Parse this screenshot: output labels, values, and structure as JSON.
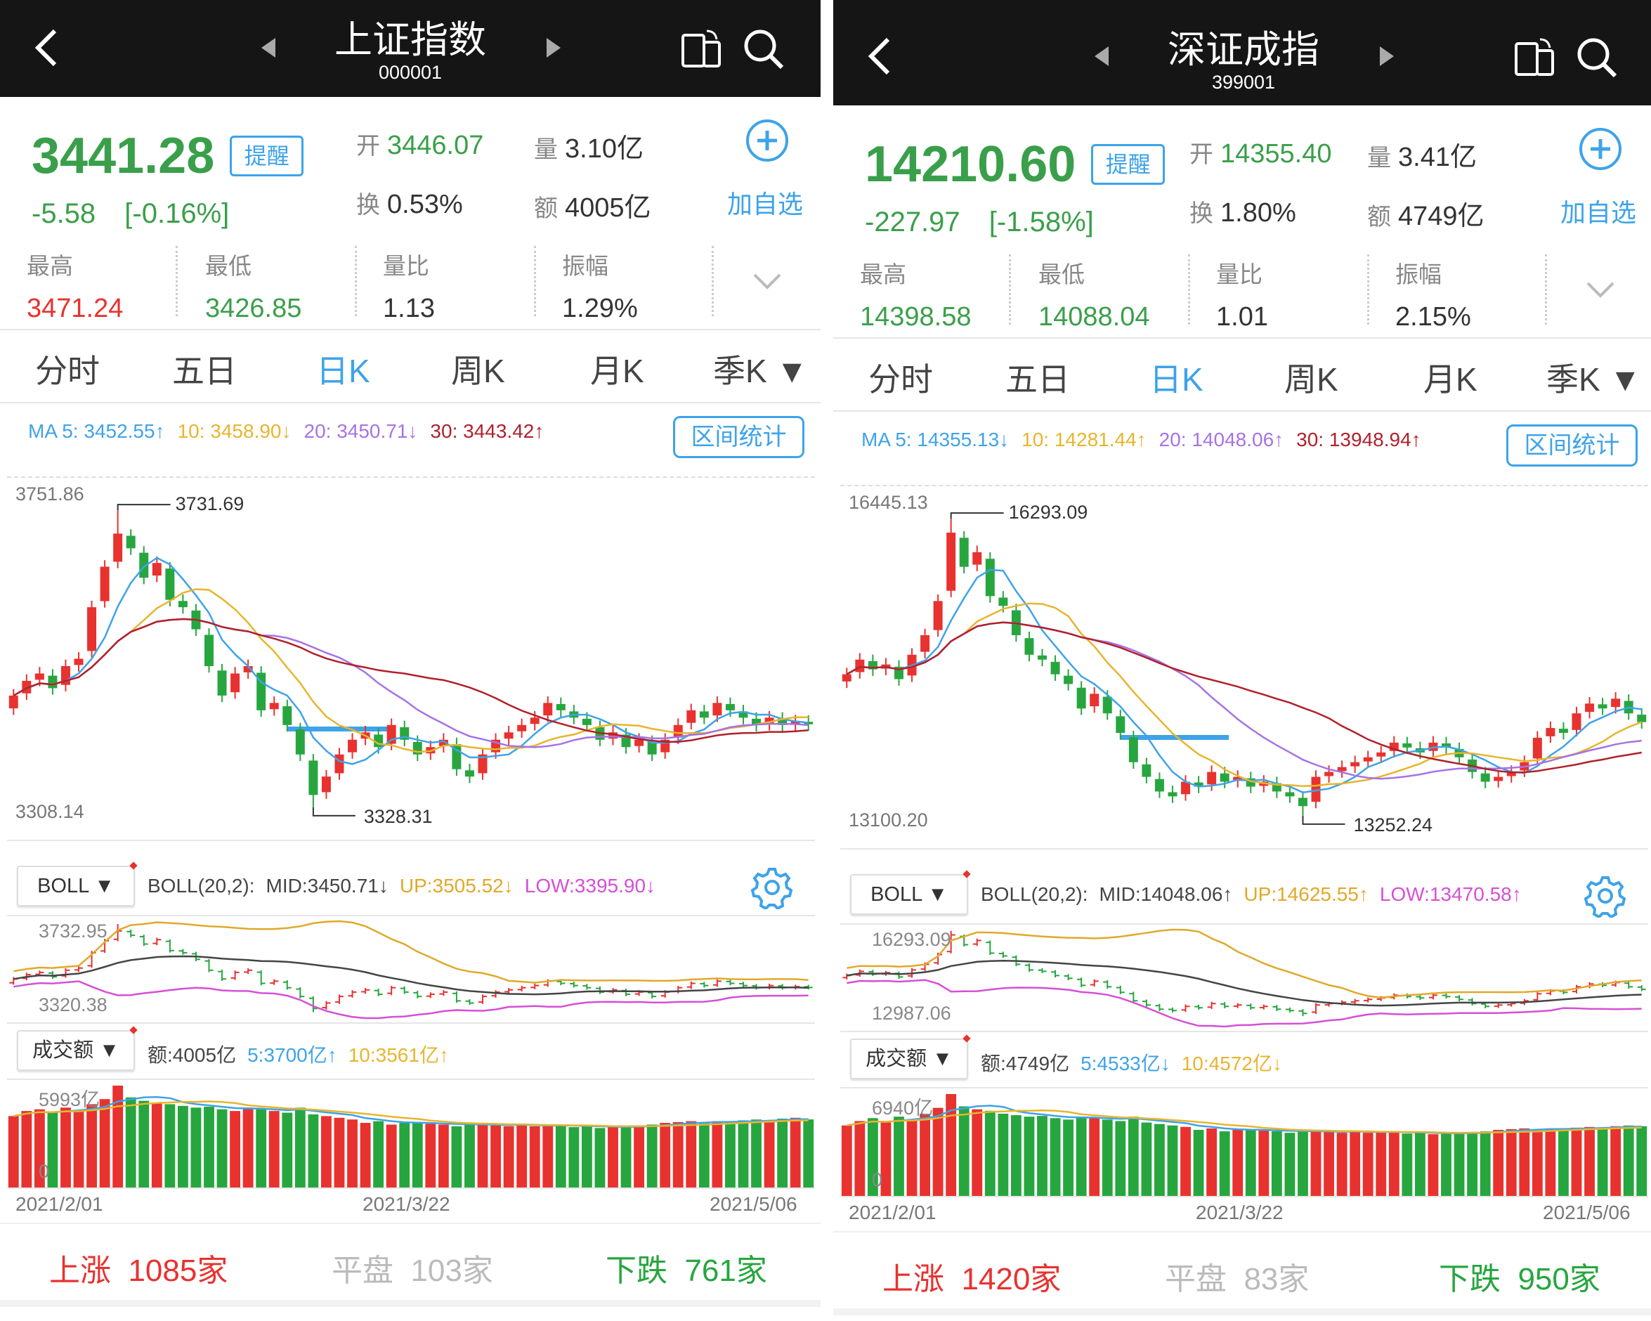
{
  "colors": {
    "up": "#e8322f",
    "down": "#27a63f",
    "ma5": "#3ea3e8",
    "ma10": "#e7b52d",
    "ma20": "#a673e6",
    "ma30": "#b0212b",
    "boll_mid": "#444444",
    "boll_up": "#e0a92a",
    "boll_low": "#d64fd6",
    "accent": "#3ea3e8"
  },
  "panels": [
    {
      "title": "上证指数",
      "code": "000001",
      "price": "3441.28",
      "alert_label": "提醒",
      "change": "-5.58",
      "change_pct": "[-0.16%]",
      "open_label": "开",
      "open": "3446.07",
      "vol_label": "量",
      "vol": "3.10亿",
      "turnover_label": "换",
      "turnover": "0.53%",
      "amount_label": "额",
      "amount": "4005亿",
      "add_fav": "加自选",
      "stats": [
        {
          "label": "最高",
          "value": "3471.24",
          "color": "#e8322f"
        },
        {
          "label": "最低",
          "value": "3426.85",
          "color": "#3a9f4a"
        },
        {
          "label": "量比",
          "value": "1.13",
          "color": "#333"
        },
        {
          "label": "振幅",
          "value": "1.29%",
          "color": "#333"
        }
      ],
      "tabs": [
        "分时",
        "五日",
        "日K",
        "周K",
        "月K",
        "季K ▼"
      ],
      "active_tab": 2,
      "ma": {
        "ma5": "MA 5: 3452.55↑",
        "ma10": "10: 3458.90↓",
        "ma20": "20: 3450.71↓",
        "ma30": "30: 3443.42↑"
      },
      "range_stats": "区间统计",
      "chart": {
        "ymax_label": "3751.86",
        "ymin_label": "3308.14",
        "ylim": [
          3308.14,
          3751.86
        ],
        "high_label": "3731.69",
        "low_label": "3328.31",
        "high": 3731.69,
        "low": 3328.31,
        "closes": [
          3480,
          3500,
          3510,
          3490,
          3520,
          3530,
          3600,
          3655,
          3700,
          3680,
          3640,
          3660,
          3610,
          3600,
          3570,
          3520,
          3480,
          3510,
          3520,
          3460,
          3470,
          3440,
          3400,
          3345,
          3370,
          3400,
          3420,
          3430,
          3410,
          3440,
          3420,
          3400,
          3410,
          3420,
          3380,
          3370,
          3400,
          3420,
          3430,
          3440,
          3450,
          3470,
          3460,
          3450,
          3440,
          3420,
          3430,
          3410,
          3420,
          3400,
          3420,
          3440,
          3460,
          3450,
          3470,
          3460,
          3450,
          3440,
          3450,
          3440,
          3445,
          3441
        ]
      },
      "boll": {
        "selector": "BOLL ▼",
        "params": "BOLL(20,2):",
        "mid": "MID:3450.71↓",
        "up": "UP:3505.52↓",
        "low": "LOW:3395.90↓",
        "ymax_label": "3732.95",
        "ymin_label": "3320.38"
      },
      "volume": {
        "selector": "成交额 ▼",
        "amount": "额:4005亿",
        "ma5": "5:3700亿↑",
        "ma10": "10:3561亿↑",
        "ymax_label": "5993亿",
        "zero_label": "0",
        "values": [
          4200,
          4500,
          4600,
          4400,
          4700,
          4500,
          4900,
          5200,
          5993,
          5300,
          5100,
          5000,
          4900,
          4800,
          4700,
          4750,
          4600,
          4500,
          4700,
          4650,
          4500,
          4400,
          4700,
          4300,
          4200,
          4100,
          4000,
          3800,
          3900,
          3700,
          3800,
          3850,
          3750,
          3700,
          3600,
          3700,
          3800,
          3650,
          3600,
          3700,
          3600,
          3650,
          3700,
          3550,
          3600,
          3500,
          3550,
          3600,
          3650,
          3700,
          3800,
          3850,
          3900,
          3800,
          3900,
          3850,
          3950,
          4000,
          3950,
          4050,
          4100,
          4005
        ]
      },
      "dates": [
        "2021/2/01",
        "2021/3/22",
        "2021/5/06"
      ],
      "footer": {
        "up_label": "上涨",
        "up": "1085家",
        "flat_label": "平盘",
        "flat": "103家",
        "down_label": "下跌",
        "down": "761家"
      }
    },
    {
      "title": "深证成指",
      "code": "399001",
      "price": "14210.60",
      "alert_label": "提醒",
      "change": "-227.97",
      "change_pct": "[-1.58%]",
      "open_label": "开",
      "open": "14355.40",
      "vol_label": "量",
      "vol": "3.41亿",
      "turnover_label": "换",
      "turnover": "1.80%",
      "amount_label": "额",
      "amount": "4749亿",
      "add_fav": "加自选",
      "stats": [
        {
          "label": "最高",
          "value": "14398.58",
          "color": "#3a9f4a"
        },
        {
          "label": "最低",
          "value": "14088.04",
          "color": "#3a9f4a"
        },
        {
          "label": "量比",
          "value": "1.01",
          "color": "#333"
        },
        {
          "label": "振幅",
          "value": "2.15%",
          "color": "#333"
        }
      ],
      "tabs": [
        "分时",
        "五日",
        "日K",
        "周K",
        "月K",
        "季K ▼"
      ],
      "active_tab": 2,
      "ma": {
        "ma5": "MA 5: 14355.13↓",
        "ma10": "10: 14281.44↑",
        "ma20": "20: 14048.06↑",
        "ma30": "30: 13948.94↑"
      },
      "range_stats": "区间统计",
      "chart": {
        "ymax_label": "16445.13",
        "ymin_label": "13100.20",
        "ylim": [
          13100.2,
          16445.13
        ],
        "high_label": "16293.09",
        "low_label": "13252.24",
        "high": 16293.09,
        "low": 13252.24,
        "closes": [
          14700,
          14850,
          14750,
          14800,
          14650,
          14900,
          15100,
          15450,
          16150,
          15800,
          15950,
          15500,
          15400,
          15100,
          14900,
          14850,
          14700,
          14600,
          14350,
          14500,
          14300,
          14100,
          13800,
          13650,
          13500,
          13450,
          13600,
          13550,
          13700,
          13600,
          13650,
          13550,
          13600,
          13500,
          13450,
          13350,
          13650,
          13700,
          13750,
          13800,
          13850,
          13900,
          14000,
          13950,
          13900,
          14000,
          13950,
          13850,
          13700,
          13600,
          13650,
          13700,
          13800,
          14050,
          14150,
          14100,
          14300,
          14400,
          14350,
          14450,
          14300,
          14210
        ]
      },
      "boll": {
        "selector": "BOLL ▼",
        "params": "BOLL(20,2):",
        "mid": "MID:14048.06↑",
        "up": "UP:14625.55↑",
        "low": "LOW:13470.58↑",
        "ymax_label": "16293.09",
        "ymin_label": "12987.06"
      },
      "volume": {
        "selector": "成交额 ▼",
        "amount": "额:4749亿",
        "ma5": "5:4533亿↓",
        "ma10": "10:4572亿↓",
        "ymax_label": "6940亿",
        "zero_label": "0",
        "values": [
          4800,
          5100,
          5300,
          5000,
          5400,
          5200,
          5600,
          6000,
          6940,
          6100,
          5900,
          5800,
          5600,
          5500,
          5400,
          5450,
          5300,
          5200,
          5400,
          5350,
          5200,
          5100,
          5400,
          5000,
          4900,
          4800,
          4700,
          4500,
          4600,
          4400,
          4500,
          4550,
          4450,
          4400,
          4300,
          4400,
          4500,
          4350,
          4300,
          4400,
          4300,
          4350,
          4400,
          4250,
          4300,
          4200,
          4250,
          4300,
          4350,
          4400,
          4500,
          4550,
          4600,
          4500,
          4600,
          4550,
          4650,
          4700,
          4650,
          4750,
          4800,
          4749
        ]
      },
      "dates": [
        "2021/2/01",
        "2021/3/22",
        "2021/5/06"
      ],
      "footer": {
        "up_label": "上涨",
        "up": "1420家",
        "flat_label": "平盘",
        "flat": "83家",
        "down_label": "下跌",
        "down": "950家"
      }
    }
  ]
}
